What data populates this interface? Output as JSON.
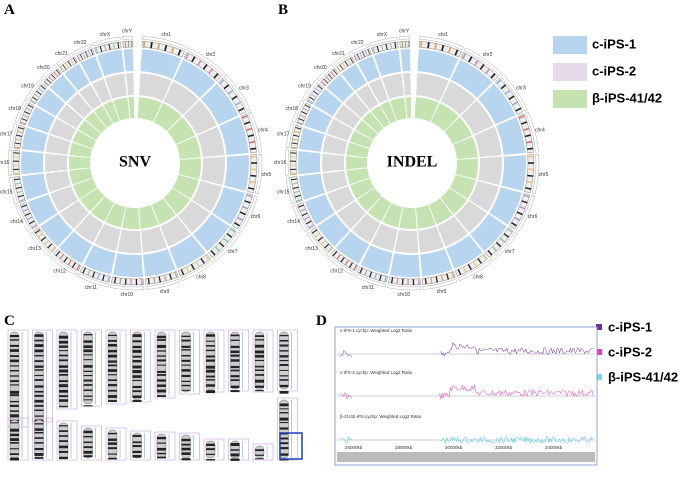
{
  "panels": {
    "a": "A",
    "b": "B",
    "c": "C",
    "d": "D"
  },
  "circos": {
    "center_a": "SNV",
    "center_b": "INDEL",
    "chromosomes": [
      "chr1",
      "chr2",
      "chr3",
      "chr4",
      "chr5",
      "chr6",
      "chr7",
      "chr8",
      "chr9",
      "chr10",
      "chr11",
      "chr12",
      "chr13",
      "chr14",
      "chr15",
      "chr16",
      "chr17",
      "chr18",
      "chr19",
      "chr20",
      "chr21",
      "chr22",
      "chrX",
      "chrY"
    ],
    "legend": [
      "c-iPS-1",
      "c-iPS-2",
      "β-iPS-41/42"
    ]
  },
  "track_view": {
    "tracks": [
      "c-iPS-1.cychp: Weighted Log2 Ratio",
      "c-iPS-2.cychp: Weighted Log2 Ratio",
      "β-41/42-iPS.cychp: Weighted Log2 Ratio"
    ],
    "positions": [
      "26000kb",
      "28000kb",
      "30000kb",
      "32000kb",
      "34000kb"
    ],
    "legend": [
      "c-iPS-1",
      "c-iPS-2",
      "β-iPS-41/42"
    ]
  }
}
